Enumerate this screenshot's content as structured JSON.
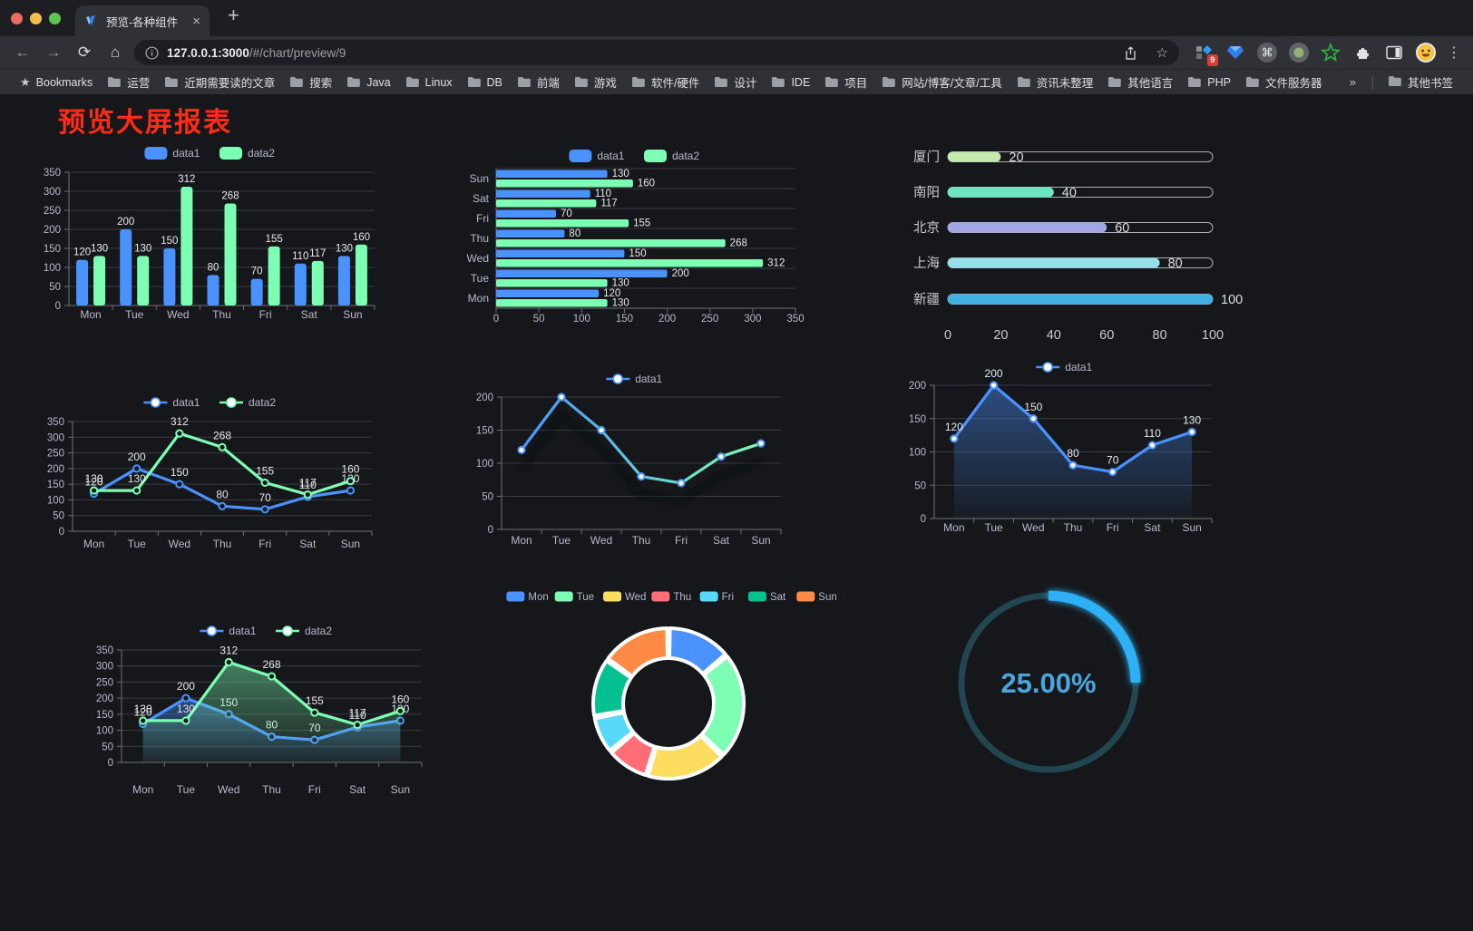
{
  "browser": {
    "tab_title": "预览-各种组件",
    "url_host": "127.0.0.1:3000",
    "url_path": "/#/chart/preview/9",
    "icons": {
      "close_tab": "×",
      "new_tab": "+",
      "back": "←",
      "forward": "→",
      "reload": "⟳",
      "home": "⌂",
      "bookmark_star": "☆",
      "menu_kebab": "⋮",
      "overflow_chevron": "»",
      "command": "⌘",
      "bookmarks_star": "★",
      "ext_star": "★"
    },
    "extension_badge": "9",
    "bookmarks_label": "Bookmarks",
    "bookmarks": [
      "运营",
      "近期需要读的文章",
      "搜索",
      "Java",
      "Linux",
      "DB",
      "前端",
      "游戏",
      "软件/硬件",
      "设计",
      "IDE",
      "项目",
      "网站/博客/文章/工具",
      "资讯未整理",
      "其他语言",
      "PHP",
      "文件服务器"
    ],
    "other_bookmarks": "其他书签"
  },
  "page": {
    "title": "预览大屏报表",
    "title_color": "#fe2c17",
    "background": "#16171b"
  },
  "chart_data": [
    {
      "id": "c1",
      "type": "bar",
      "categories": [
        "Mon",
        "Tue",
        "Wed",
        "Thu",
        "Fri",
        "Sat",
        "Sun"
      ],
      "series": [
        {
          "name": "data1",
          "color": "#4992ff",
          "values": [
            120,
            200,
            150,
            80,
            70,
            110,
            130
          ]
        },
        {
          "name": "data2",
          "color": "#7cffb2",
          "values": [
            130,
            130,
            312,
            268,
            155,
            117,
            160
          ]
        }
      ],
      "ylim": [
        0,
        350
      ],
      "ystep": 50,
      "show_labels": true,
      "legend_position": "top",
      "grid": true
    },
    {
      "id": "c2",
      "type": "hbar",
      "categories": [
        "Mon",
        "Tue",
        "Wed",
        "Thu",
        "Fri",
        "Sat",
        "Sun"
      ],
      "display_order": "reversed",
      "series": [
        {
          "name": "data1",
          "color": "#4992ff",
          "values": [
            120,
            200,
            150,
            80,
            70,
            110,
            130
          ]
        },
        {
          "name": "data2",
          "color": "#7cffb2",
          "values": [
            130,
            130,
            312,
            268,
            155,
            117,
            160
          ]
        }
      ],
      "xlim": [
        0,
        350
      ],
      "xstep": 50,
      "show_labels": true,
      "legend_position": "top",
      "grid": true
    },
    {
      "id": "c3",
      "type": "progress-bars",
      "rows": [
        {
          "label": "厦门",
          "value": 20,
          "color": "#c4ebad"
        },
        {
          "label": "南阳",
          "value": 40,
          "color": "#6be6c1"
        },
        {
          "label": "北京",
          "value": 60,
          "color": "#a0a7e6"
        },
        {
          "label": "上海",
          "value": 80,
          "color": "#96dee8"
        },
        {
          "label": "新疆",
          "value": 100,
          "color": "#3fb1e3"
        }
      ],
      "xlim": [
        0,
        100
      ],
      "xticks": [
        0,
        20,
        40,
        60,
        80,
        100
      ]
    },
    {
      "id": "c4",
      "type": "line",
      "categories": [
        "Mon",
        "Tue",
        "Wed",
        "Thu",
        "Fri",
        "Sat",
        "Sun"
      ],
      "series": [
        {
          "name": "data1",
          "color": "#4992ff",
          "values": [
            120,
            200,
            150,
            80,
            70,
            110,
            130
          ]
        },
        {
          "name": "data2",
          "color": "#7cffb2",
          "values": [
            130,
            130,
            312,
            268,
            155,
            117,
            160
          ]
        }
      ],
      "ylim": [
        0,
        350
      ],
      "ystep": 50,
      "show_labels": true,
      "legend_position": "top",
      "grid": true
    },
    {
      "id": "c5",
      "type": "line",
      "categories": [
        "Mon",
        "Tue",
        "Wed",
        "Thu",
        "Fri",
        "Sat",
        "Sun"
      ],
      "series": [
        {
          "name": "data1",
          "gradient": [
            "#4992ff",
            "#7cffb2"
          ],
          "values": [
            120,
            200,
            150,
            80,
            70,
            110,
            130
          ]
        }
      ],
      "ylim": [
        0,
        200
      ],
      "ystep": 50,
      "show_labels": false,
      "shadow": true,
      "legend_position": "top",
      "grid": true
    },
    {
      "id": "c6",
      "type": "line",
      "categories": [
        "Mon",
        "Tue",
        "Wed",
        "Thu",
        "Fri",
        "Sat",
        "Sun"
      ],
      "series": [
        {
          "name": "data1",
          "color": "#4992ff",
          "area": true,
          "values": [
            120,
            200,
            150,
            80,
            70,
            110,
            130
          ]
        }
      ],
      "ylim": [
        0,
        200
      ],
      "ystep": 50,
      "show_labels": true,
      "legend_position": "top",
      "grid": true
    },
    {
      "id": "c7",
      "type": "line",
      "categories": [
        "Mon",
        "Tue",
        "Wed",
        "Thu",
        "Fri",
        "Sat",
        "Sun"
      ],
      "series": [
        {
          "name": "data1",
          "color": "#4992ff",
          "area": true,
          "values": [
            120,
            200,
            150,
            80,
            70,
            110,
            130
          ]
        },
        {
          "name": "data2",
          "color": "#7cffb2",
          "area": true,
          "values": [
            130,
            130,
            312,
            268,
            155,
            117,
            160
          ]
        }
      ],
      "ylim": [
        0,
        350
      ],
      "ystep": 50,
      "show_labels": true,
      "legend_position": "top",
      "grid": true
    },
    {
      "id": "c8",
      "type": "pie",
      "legend_position": "top",
      "items": [
        {
          "label": "Mon",
          "value": 120,
          "color": "#4992ff"
        },
        {
          "label": "Tue",
          "value": 200,
          "color": "#7cffb2"
        },
        {
          "label": "Wed",
          "value": 150,
          "color": "#fddd60"
        },
        {
          "label": "Thu",
          "value": 80,
          "color": "#ff6e76"
        },
        {
          "label": "Fri",
          "value": 70,
          "color": "#58d9f9"
        },
        {
          "label": "Sat",
          "value": 110,
          "color": "#05c091"
        },
        {
          "label": "Sun",
          "value": 130,
          "color": "#ff8a45"
        }
      ],
      "donut": true
    },
    {
      "id": "c9",
      "type": "gauge",
      "percent": 25,
      "label": "25.00%",
      "arc_color": "#2fb1f4",
      "track_color": "#21464f",
      "text_color": "#49a6de"
    }
  ]
}
